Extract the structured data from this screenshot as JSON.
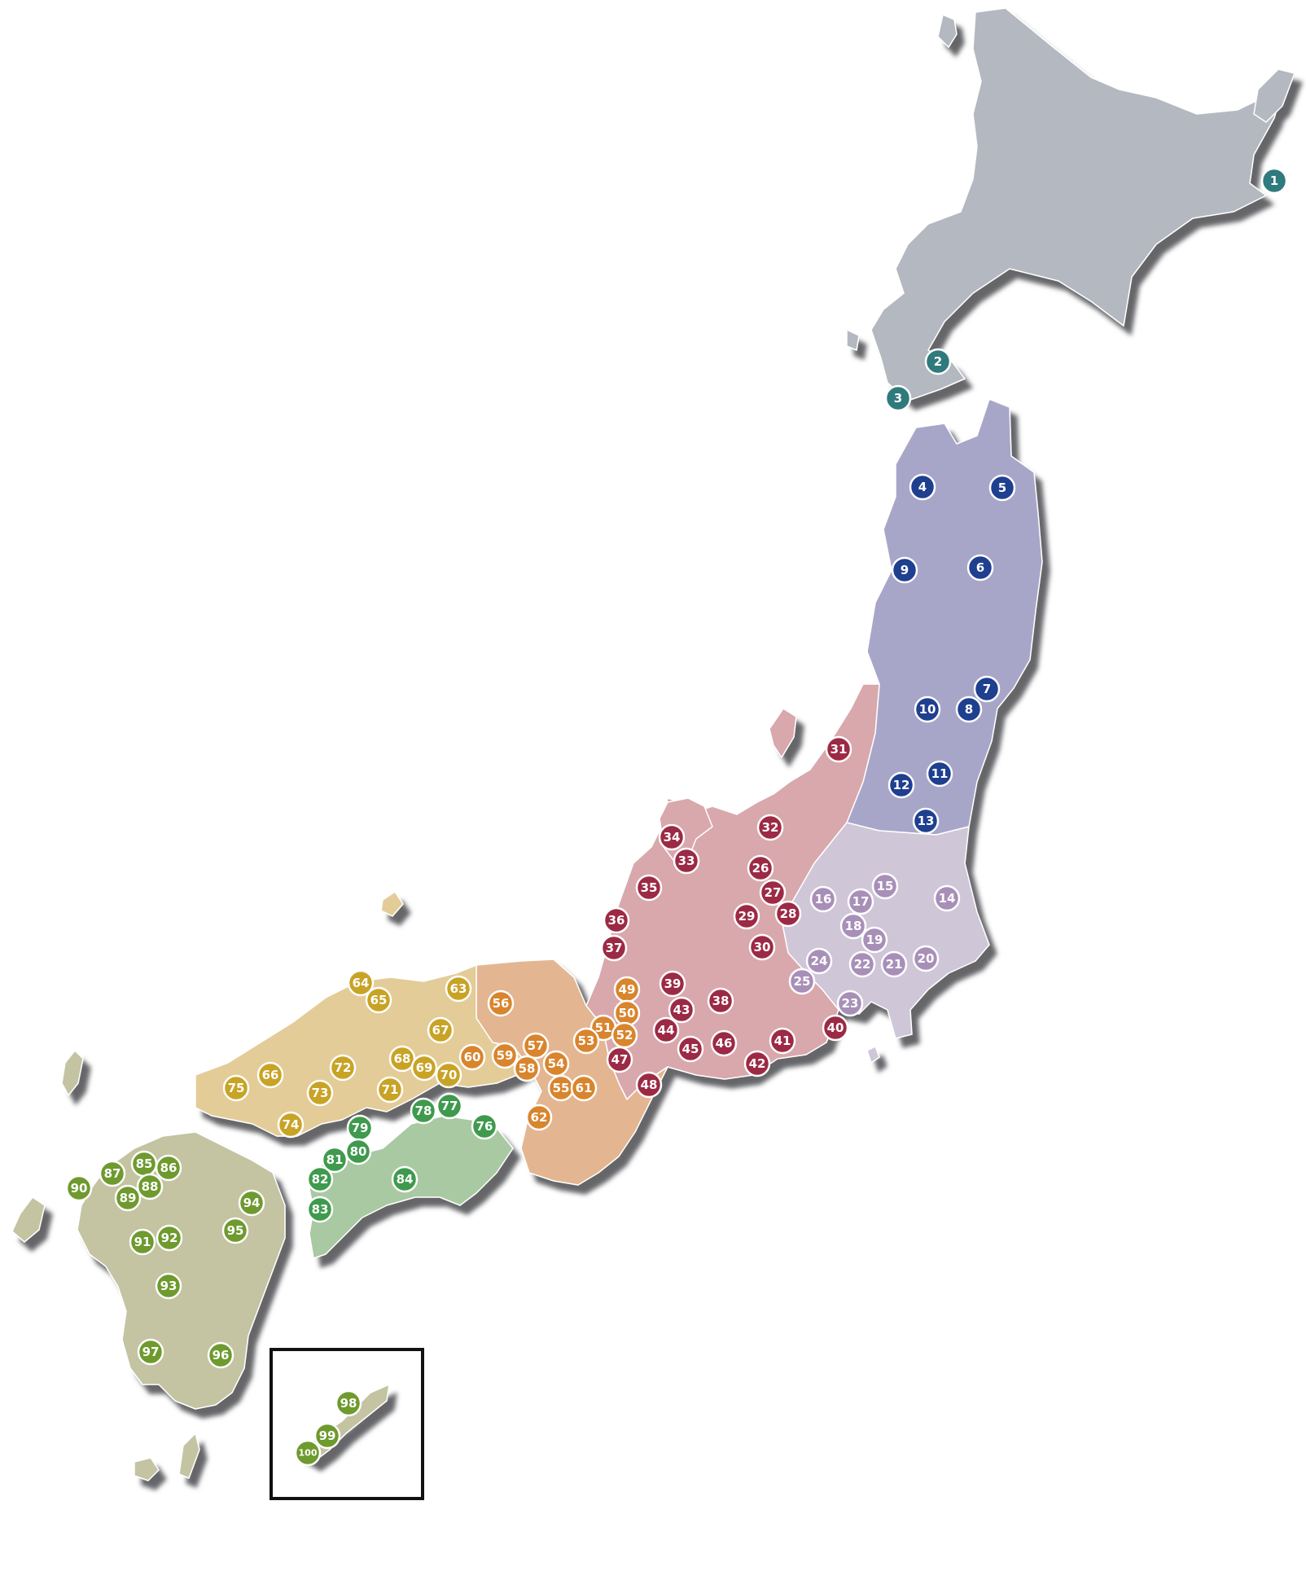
{
  "regions": {
    "hokkaido": {
      "fill": "#b4b8c0",
      "marker": "#2f7a7c"
    },
    "tohoku": {
      "fill": "#a8a6c8",
      "marker": "#1f3f8f"
    },
    "kanto": {
      "fill": "#cfc6d8",
      "marker": "#a88fb8"
    },
    "chubu": {
      "fill": "#d8a8ac",
      "marker": "#9c2a45"
    },
    "kinki": {
      "fill": "#e3b691",
      "marker": "#d8852e"
    },
    "chugoku": {
      "fill": "#e3cc98",
      "marker": "#c8a326"
    },
    "shikoku": {
      "fill": "#a9c9a2",
      "marker": "#3f9a4e"
    },
    "kyushu": {
      "fill": "#c4c3a2",
      "marker": "#6e9a2e"
    },
    "okinawa": {
      "fill": "#c4c3a2",
      "marker": "#6e9a2e"
    }
  },
  "shadow_color": "#55565a",
  "markers": [
    {
      "label": "1",
      "region": "hokkaido"
    },
    {
      "label": "2",
      "region": "hokkaido"
    },
    {
      "label": "3",
      "region": "hokkaido"
    },
    {
      "label": "4",
      "region": "tohoku"
    },
    {
      "label": "5",
      "region": "tohoku"
    },
    {
      "label": "6",
      "region": "tohoku"
    },
    {
      "label": "7",
      "region": "tohoku"
    },
    {
      "label": "8",
      "region": "tohoku"
    },
    {
      "label": "9",
      "region": "tohoku"
    },
    {
      "label": "10",
      "region": "tohoku"
    },
    {
      "label": "11",
      "region": "tohoku"
    },
    {
      "label": "12",
      "region": "tohoku"
    },
    {
      "label": "13",
      "region": "tohoku"
    },
    {
      "label": "14",
      "region": "kanto"
    },
    {
      "label": "15",
      "region": "kanto"
    },
    {
      "label": "16",
      "region": "kanto"
    },
    {
      "label": "17",
      "region": "kanto"
    },
    {
      "label": "18",
      "region": "kanto"
    },
    {
      "label": "19",
      "region": "kanto"
    },
    {
      "label": "20",
      "region": "kanto"
    },
    {
      "label": "21",
      "region": "kanto"
    },
    {
      "label": "22",
      "region": "kanto"
    },
    {
      "label": "23",
      "region": "kanto"
    },
    {
      "label": "24",
      "region": "kanto"
    },
    {
      "label": "25",
      "region": "kanto"
    },
    {
      "label": "26",
      "region": "chubu"
    },
    {
      "label": "27",
      "region": "chubu"
    },
    {
      "label": "28",
      "region": "chubu"
    },
    {
      "label": "29",
      "region": "chubu"
    },
    {
      "label": "30",
      "region": "chubu"
    },
    {
      "label": "31",
      "region": "chubu"
    },
    {
      "label": "32",
      "region": "chubu"
    },
    {
      "label": "33",
      "region": "chubu"
    },
    {
      "label": "34",
      "region": "chubu"
    },
    {
      "label": "35",
      "region": "chubu"
    },
    {
      "label": "36",
      "region": "chubu"
    },
    {
      "label": "37",
      "region": "chubu"
    },
    {
      "label": "38",
      "region": "chubu"
    },
    {
      "label": "39",
      "region": "chubu"
    },
    {
      "label": "40",
      "region": "chubu"
    },
    {
      "label": "41",
      "region": "chubu"
    },
    {
      "label": "42",
      "region": "chubu"
    },
    {
      "label": "43",
      "region": "chubu"
    },
    {
      "label": "44",
      "region": "chubu"
    },
    {
      "label": "45",
      "region": "chubu"
    },
    {
      "label": "46",
      "region": "chubu"
    },
    {
      "label": "47",
      "region": "chubu"
    },
    {
      "label": "48",
      "region": "chubu"
    },
    {
      "label": "49",
      "region": "kinki"
    },
    {
      "label": "50",
      "region": "kinki"
    },
    {
      "label": "51",
      "region": "kinki"
    },
    {
      "label": "52",
      "region": "kinki"
    },
    {
      "label": "53",
      "region": "kinki"
    },
    {
      "label": "54",
      "region": "kinki"
    },
    {
      "label": "55",
      "region": "kinki"
    },
    {
      "label": "56",
      "region": "kinki"
    },
    {
      "label": "57",
      "region": "kinki"
    },
    {
      "label": "58",
      "region": "kinki"
    },
    {
      "label": "59",
      "region": "kinki"
    },
    {
      "label": "60",
      "region": "kinki"
    },
    {
      "label": "61",
      "region": "kinki"
    },
    {
      "label": "62",
      "region": "kinki"
    },
    {
      "label": "63",
      "region": "chugoku"
    },
    {
      "label": "64",
      "region": "chugoku"
    },
    {
      "label": "65",
      "region": "chugoku"
    },
    {
      "label": "66",
      "region": "chugoku"
    },
    {
      "label": "67",
      "region": "chugoku"
    },
    {
      "label": "68",
      "region": "chugoku"
    },
    {
      "label": "69",
      "region": "chugoku"
    },
    {
      "label": "70",
      "region": "chugoku"
    },
    {
      "label": "71",
      "region": "chugoku"
    },
    {
      "label": "72",
      "region": "chugoku"
    },
    {
      "label": "73",
      "region": "chugoku"
    },
    {
      "label": "74",
      "region": "chugoku"
    },
    {
      "label": "75",
      "region": "chugoku"
    },
    {
      "label": "76",
      "region": "shikoku"
    },
    {
      "label": "77",
      "region": "shikoku"
    },
    {
      "label": "78",
      "region": "shikoku"
    },
    {
      "label": "79",
      "region": "shikoku"
    },
    {
      "label": "80",
      "region": "shikoku"
    },
    {
      "label": "81",
      "region": "shikoku"
    },
    {
      "label": "82",
      "region": "shikoku"
    },
    {
      "label": "83",
      "region": "shikoku"
    },
    {
      "label": "84",
      "region": "shikoku"
    },
    {
      "label": "85",
      "region": "kyushu"
    },
    {
      "label": "86",
      "region": "kyushu"
    },
    {
      "label": "87",
      "region": "kyushu"
    },
    {
      "label": "88",
      "region": "kyushu"
    },
    {
      "label": "89",
      "region": "kyushu"
    },
    {
      "label": "90",
      "region": "kyushu"
    },
    {
      "label": "91",
      "region": "kyushu"
    },
    {
      "label": "92",
      "region": "kyushu"
    },
    {
      "label": "93",
      "region": "kyushu"
    },
    {
      "label": "94",
      "region": "kyushu"
    },
    {
      "label": "95",
      "region": "kyushu"
    },
    {
      "label": "96",
      "region": "kyushu"
    },
    {
      "label": "97",
      "region": "kyushu"
    },
    {
      "label": "98",
      "region": "okinawa"
    },
    {
      "label": "99",
      "region": "okinawa"
    },
    {
      "label": "100",
      "region": "okinawa"
    }
  ]
}
